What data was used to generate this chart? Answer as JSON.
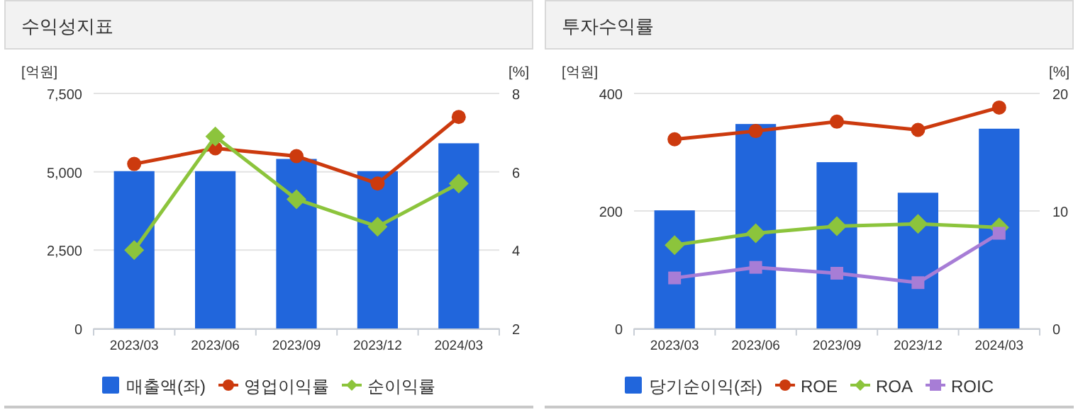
{
  "chart_data": [
    {
      "type": "bar",
      "title": "수익성지표",
      "categories": [
        "2023/03",
        "2023/06",
        "2023/09",
        "2023/12",
        "2024/03"
      ],
      "ylabel": "[억원]",
      "y2label": "[%]",
      "ylim": [
        0,
        7500
      ],
      "yticks": [
        0,
        {
          "value": 2500,
          "label": "2,500"
        },
        {
          "value": 5000,
          "label": "5,000"
        },
        {
          "value": 7500,
          "label": "7,500"
        }
      ],
      "y2lim": [
        2,
        8
      ],
      "y2ticks": [
        2,
        4,
        6,
        8
      ],
      "grid": "y",
      "legend": "bottom",
      "series": [
        {
          "name": "매출액(좌)",
          "color": "#2166dc",
          "values": [
            5020,
            5020,
            5410,
            5020,
            5910
          ]
        },
        {
          "name": "영업이익률",
          "type": "line",
          "axis": "y2",
          "marker": "circle",
          "color": "#cc3a0e",
          "values": [
            6.2,
            6.6,
            6.4,
            5.7,
            7.4
          ]
        },
        {
          "name": "순이익률",
          "type": "line",
          "axis": "y2",
          "marker": "diamond",
          "color": "#8cc43c",
          "values": [
            4.0,
            6.9,
            5.3,
            4.6,
            5.7
          ]
        }
      ]
    },
    {
      "type": "bar",
      "title": "투자수익률",
      "categories": [
        "2023/03",
        "2023/06",
        "2023/09",
        "2023/12",
        "2024/03"
      ],
      "ylabel": "[억원]",
      "y2label": "[%]",
      "ylim": [
        0,
        400
      ],
      "yticks": [
        0,
        200,
        400
      ],
      "y2lim": [
        0,
        20
      ],
      "y2ticks": [
        0,
        10,
        20
      ],
      "grid": "y",
      "legend": "bottom",
      "series": [
        {
          "name": "당기순이익(좌)",
          "color": "#2166dc",
          "values": [
            201,
            348,
            283,
            231,
            340
          ]
        },
        {
          "name": "ROE",
          "type": "line",
          "axis": "y2",
          "marker": "circle",
          "color": "#cc3a0e",
          "values": [
            16.1,
            16.8,
            17.6,
            16.9,
            18.8
          ]
        },
        {
          "name": "ROA",
          "type": "line",
          "axis": "y2",
          "marker": "diamond",
          "color": "#8cc43c",
          "values": [
            7.1,
            8.1,
            8.7,
            8.9,
            8.6
          ]
        },
        {
          "name": "ROIC",
          "type": "line",
          "axis": "y2",
          "marker": "square",
          "color": "#a77dd6",
          "values": [
            4.3,
            5.2,
            4.7,
            3.9,
            8.1
          ]
        }
      ]
    }
  ]
}
